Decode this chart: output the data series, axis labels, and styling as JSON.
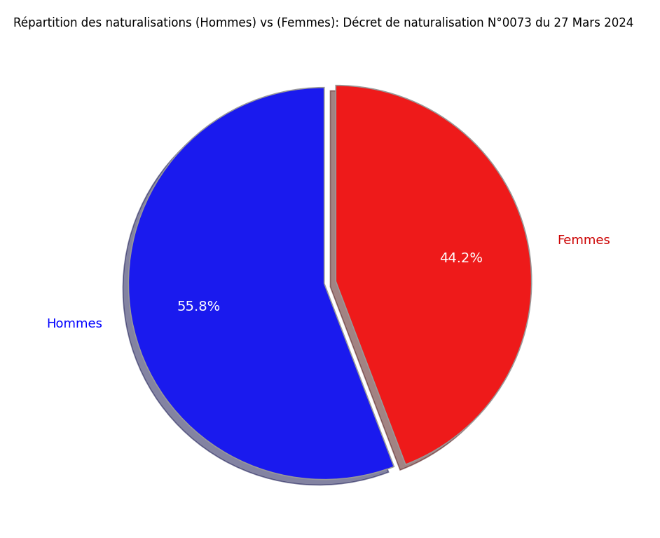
{
  "title": "Répartition des naturalisations (Hommes) vs (Femmes): Décret de naturalisation N°0073 du 27 Mars 2024",
  "labels": [
    "Hommes",
    "Femmes"
  ],
  "values": [
    55.8,
    44.2
  ],
  "colors": [
    "#1a1aee",
    "#ee1a1a"
  ],
  "explode": [
    0.03,
    0.03
  ],
  "label_colors": [
    "#0000ff",
    "#cc0000"
  ],
  "text_color_inside": "white",
  "background_color": "#ffffff",
  "startangle": 90,
  "shadow": true,
  "pct_fontsize": 14,
  "label_fontsize": 13,
  "title_fontsize": 12,
  "pct_distance": 0.65,
  "label_distance": 1.18
}
